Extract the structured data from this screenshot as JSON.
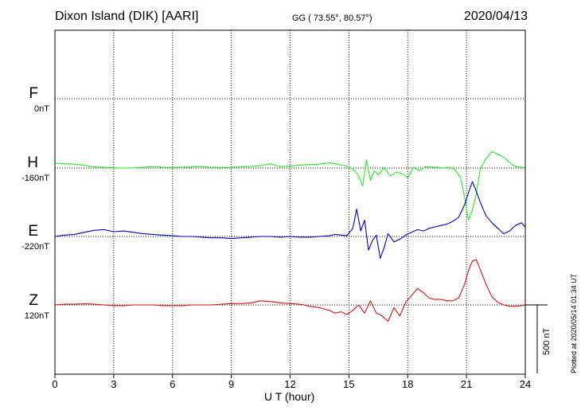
{
  "header": {
    "station": "Dixon Island (DIK)  [AARI]",
    "coords": "GG ( 73.55°,  80.57°)",
    "date": "2020/04/13"
  },
  "footer": {
    "plotted": "Plotted at 2020/05/14 01:34 UT",
    "scale_label": "500 nT"
  },
  "colors": {
    "F": "#f5a500",
    "H": "#22ee22",
    "E": "#0000cc",
    "Z": "#dd1111"
  },
  "chart_data": {
    "type": "line",
    "xlabel": "U T (hour)",
    "xlim": [
      0,
      24
    ],
    "xticks": [
      "0",
      "3",
      "6",
      "9",
      "12",
      "15",
      "18",
      "21",
      "24"
    ],
    "scale_bar_nT": 500,
    "components": [
      {
        "name": "F",
        "baseline": "0nT",
        "baseline_nT": 0,
        "values": []
      },
      {
        "name": "H",
        "baseline": "-160nT",
        "baseline_nT": -160,
        "x": [
          0,
          0.5,
          1,
          1.5,
          2,
          2.5,
          3,
          3.5,
          4,
          4.5,
          5,
          5.5,
          6,
          6.5,
          7,
          7.5,
          8,
          8.5,
          9,
          9.5,
          10,
          10.5,
          11,
          11.5,
          12,
          12.5,
          13,
          13.5,
          14,
          14.3,
          14.7,
          15,
          15.3,
          15.5,
          15.7,
          15.9,
          16.1,
          16.3,
          16.5,
          16.8,
          17.1,
          17.4,
          17.7,
          18,
          18.3,
          18.6,
          18.9,
          19.2,
          19.5,
          19.8,
          20.1,
          20.4,
          20.7,
          20.9,
          21.1,
          21.3,
          21.5,
          21.7,
          22,
          22.3,
          22.6,
          22.9,
          23.2,
          23.5,
          23.8,
          24
        ],
        "values": [
          35,
          30,
          28,
          20,
          8,
          5,
          2,
          0,
          0,
          5,
          10,
          5,
          4,
          5,
          8,
          10,
          5,
          4,
          5,
          8,
          12,
          18,
          30,
          10,
          15,
          20,
          25,
          28,
          38,
          30,
          20,
          10,
          -20,
          -60,
          -130,
          60,
          -90,
          -20,
          -50,
          5,
          -60,
          -30,
          -40,
          -70,
          5,
          -20,
          10,
          5,
          5,
          0,
          5,
          -10,
          -70,
          -210,
          -380,
          -310,
          -190,
          -10,
          70,
          120,
          100,
          80,
          40,
          10,
          5,
          0
        ]
      },
      {
        "name": "E",
        "baseline": "-220nT",
        "baseline_nT": -220,
        "x": [
          0,
          0.5,
          1,
          1.5,
          2,
          2.5,
          3,
          3.5,
          4,
          4.5,
          5,
          5.5,
          6,
          6.5,
          7,
          7.5,
          8,
          8.5,
          9,
          9.5,
          10,
          10.5,
          11,
          11.5,
          12,
          12.5,
          13,
          13.5,
          14,
          14.3,
          14.6,
          14.9,
          15.2,
          15.4,
          15.6,
          15.8,
          16,
          16.2,
          16.4,
          16.6,
          16.8,
          17,
          17.3,
          17.6,
          17.9,
          18.2,
          18.5,
          18.8,
          19.1,
          19.4,
          19.7,
          20,
          20.3,
          20.6,
          20.9,
          21.1,
          21.3,
          21.5,
          21.7,
          22,
          22.3,
          22.6,
          22.9,
          23.2,
          23.5,
          23.8,
          24
        ],
        "values": [
          0,
          10,
          15,
          30,
          45,
          50,
          35,
          40,
          30,
          20,
          15,
          10,
          5,
          0,
          0,
          -5,
          -10,
          -10,
          -15,
          -10,
          -5,
          0,
          0,
          -5,
          0,
          -5,
          -5,
          0,
          5,
          15,
          10,
          5,
          60,
          200,
          40,
          120,
          -100,
          -30,
          10,
          -160,
          -80,
          20,
          -40,
          -20,
          10,
          30,
          50,
          40,
          60,
          70,
          80,
          90,
          110,
          140,
          230,
          320,
          400,
          330,
          250,
          150,
          100,
          60,
          20,
          40,
          80,
          100,
          70
        ]
      },
      {
        "name": "Z",
        "baseline": "120nT",
        "baseline_nT": 120,
        "x": [
          0,
          0.5,
          1,
          1.5,
          2,
          2.5,
          3,
          3.5,
          4,
          4.5,
          5,
          5.5,
          6,
          6.5,
          7,
          7.5,
          8,
          8.5,
          9,
          9.5,
          10,
          10.5,
          11,
          11.5,
          12,
          12.5,
          13,
          13.5,
          14,
          14.3,
          14.6,
          14.9,
          15.2,
          15.5,
          15.8,
          16.1,
          16.4,
          16.7,
          17,
          17.3,
          17.6,
          17.9,
          18.2,
          18.5,
          18.8,
          19.1,
          19.4,
          19.7,
          20,
          20.3,
          20.6,
          20.9,
          21.1,
          21.3,
          21.5,
          21.7,
          22,
          22.3,
          22.6,
          22.9,
          23.2,
          23.5,
          23.8,
          24
        ],
        "values": [
          0,
          5,
          5,
          8,
          5,
          0,
          -5,
          -5,
          0,
          0,
          0,
          -5,
          -5,
          -5,
          0,
          0,
          0,
          5,
          10,
          10,
          15,
          30,
          25,
          15,
          10,
          5,
          -10,
          -20,
          -40,
          -60,
          -50,
          -70,
          -40,
          0,
          -60,
          30,
          -60,
          -80,
          -120,
          -20,
          -80,
          20,
          70,
          120,
          90,
          50,
          40,
          40,
          30,
          30,
          50,
          150,
          250,
          320,
          330,
          260,
          150,
          60,
          20,
          0,
          -10,
          -10,
          -5,
          0
        ]
      }
    ]
  }
}
